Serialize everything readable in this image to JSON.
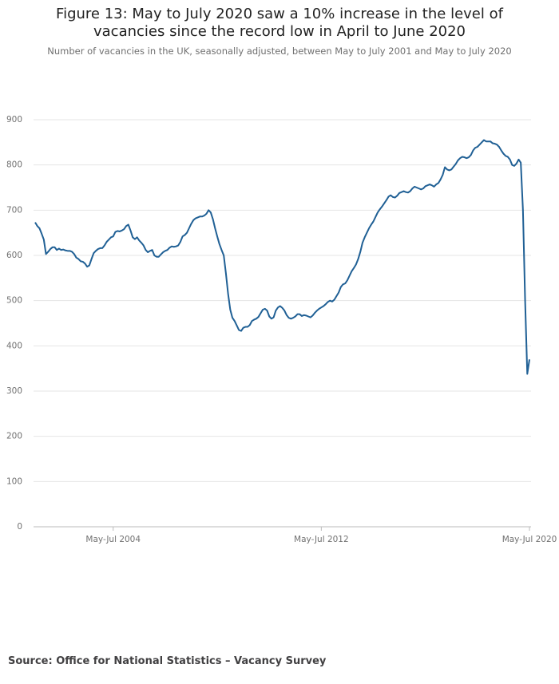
{
  "chart_data": {
    "type": "line",
    "title": "Figure 13: May to July 2020 saw a 10% increase in the level of vacancies since the record low in April to June 2020",
    "subtitle": "Number of vacancies in the UK, seasonally adjusted, between May to July 2001 and May to July 2020",
    "source": "Source: Office for National Statistics – Vacancy Survey",
    "color": "#206095",
    "grid": true,
    "ylim": [
      0,
      900
    ],
    "yticks": [
      0,
      100,
      200,
      300,
      400,
      500,
      600,
      700,
      800,
      900
    ],
    "categories": [
      null,
      null,
      null,
      null,
      null,
      null,
      null,
      null,
      null,
      null,
      null,
      null,
      null,
      null,
      null,
      null,
      null,
      null,
      null,
      null,
      null,
      null,
      null,
      null,
      null,
      null,
      null,
      null,
      null,
      null,
      null,
      null,
      null,
      null,
      null,
      null,
      "May-Jul 2004",
      null,
      null,
      null,
      null,
      null,
      null,
      null,
      null,
      null,
      null,
      null,
      null,
      null,
      null,
      null,
      null,
      null,
      null,
      null,
      null,
      null,
      null,
      null,
      null,
      null,
      null,
      null,
      null,
      null,
      null,
      null,
      null,
      null,
      null,
      null,
      null,
      null,
      null,
      null,
      null,
      null,
      null,
      null,
      null,
      null,
      null,
      null,
      null,
      null,
      null,
      null,
      null,
      null,
      null,
      null,
      null,
      null,
      null,
      null,
      null,
      null,
      null,
      null,
      null,
      null,
      null,
      null,
      null,
      null,
      null,
      null,
      null,
      null,
      null,
      null,
      null,
      null,
      null,
      null,
      null,
      null,
      null,
      null,
      null,
      null,
      null,
      null,
      null,
      null,
      null,
      null,
      null,
      null,
      null,
      null,
      "May-Jul 2012",
      null,
      null,
      null,
      null,
      null,
      null,
      null,
      null,
      null,
      null,
      null,
      null,
      null,
      null,
      null,
      null,
      null,
      null,
      null,
      null,
      null,
      null,
      null,
      null,
      null,
      null,
      null,
      null,
      null,
      null,
      null,
      null,
      null,
      null,
      null,
      null,
      null,
      null,
      null,
      null,
      null,
      null,
      null,
      null,
      null,
      null,
      null,
      null,
      null,
      null,
      null,
      null,
      null,
      null,
      null,
      null,
      null,
      null,
      null,
      null,
      null,
      null,
      null,
      null,
      null,
      null,
      null,
      null,
      null,
      null,
      null,
      null,
      null,
      null,
      null,
      null,
      null,
      null,
      null,
      null,
      null,
      null,
      null,
      null,
      null,
      null,
      null,
      null,
      null,
      null,
      null,
      null,
      null,
      null,
      null,
      "May-Jul 2020"
    ],
    "values": [
      673,
      665,
      660,
      648,
      635,
      603,
      608,
      614,
      618,
      618,
      612,
      615,
      612,
      613,
      611,
      610,
      610,
      608,
      603,
      595,
      592,
      587,
      586,
      582,
      575,
      578,
      592,
      605,
      610,
      614,
      616,
      616,
      622,
      630,
      635,
      640,
      642,
      652,
      654,
      653,
      655,
      658,
      665,
      668,
      655,
      640,
      636,
      640,
      633,
      628,
      622,
      612,
      607,
      610,
      612,
      600,
      597,
      597,
      602,
      607,
      610,
      612,
      617,
      620,
      619,
      620,
      622,
      630,
      642,
      645,
      650,
      660,
      670,
      678,
      682,
      684,
      686,
      686,
      688,
      692,
      700,
      695,
      680,
      660,
      642,
      625,
      612,
      600,
      560,
      515,
      480,
      462,
      455,
      445,
      435,
      433,
      440,
      442,
      442,
      446,
      455,
      458,
      460,
      464,
      472,
      480,
      482,
      478,
      465,
      460,
      463,
      478,
      485,
      488,
      484,
      478,
      468,
      462,
      460,
      462,
      465,
      470,
      470,
      466,
      468,
      467,
      465,
      463,
      467,
      473,
      478,
      482,
      485,
      488,
      492,
      497,
      500,
      498,
      502,
      510,
      518,
      530,
      536,
      538,
      545,
      555,
      565,
      572,
      580,
      592,
      608,
      628,
      640,
      650,
      660,
      668,
      675,
      685,
      695,
      702,
      708,
      715,
      722,
      730,
      733,
      729,
      728,
      732,
      738,
      740,
      742,
      740,
      739,
      742,
      748,
      752,
      750,
      748,
      746,
      748,
      753,
      755,
      757,
      755,
      752,
      757,
      760,
      768,
      778,
      795,
      790,
      788,
      790,
      796,
      802,
      810,
      815,
      818,
      817,
      815,
      817,
      822,
      832,
      838,
      840,
      845,
      850,
      855,
      852,
      852,
      852,
      848,
      847,
      845,
      840,
      832,
      825,
      820,
      818,
      812,
      800,
      798,
      803,
      812,
      805,
      700,
      500,
      338,
      370
    ]
  }
}
